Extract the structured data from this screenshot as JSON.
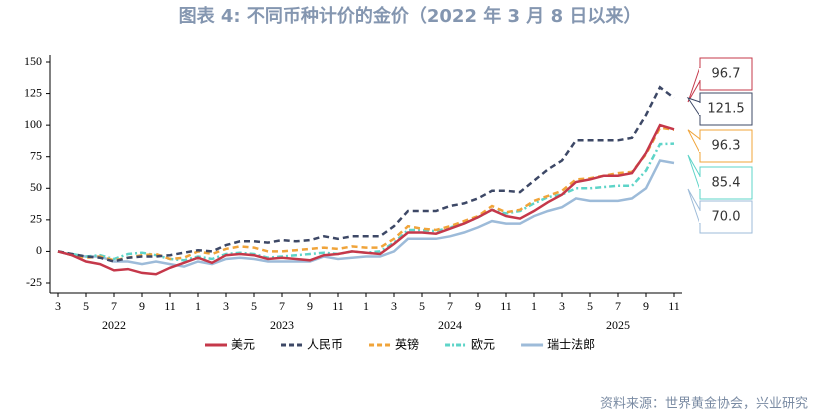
{
  "chart_data": {
    "type": "line",
    "title": "图表 4:  不同币种计价的金价（2022 年 3 月 8 日以来）",
    "source": "资料来源：世界黄金协会，兴业研究",
    "x": [
      "2022-03",
      "2022-04",
      "2022-05",
      "2022-06",
      "2022-07",
      "2022-08",
      "2022-09",
      "2022-10",
      "2022-11",
      "2022-12",
      "2023-01",
      "2023-02",
      "2023-03",
      "2023-04",
      "2023-05",
      "2023-06",
      "2023-07",
      "2023-08",
      "2023-09",
      "2023-10",
      "2023-11",
      "2023-12",
      "2024-01",
      "2024-02",
      "2024-03",
      "2024-04",
      "2024-05",
      "2024-06",
      "2024-07",
      "2024-08",
      "2024-09",
      "2024-10",
      "2024-11",
      "2024-12",
      "2025-01",
      "2025-02",
      "2025-03",
      "2025-04",
      "2025-05",
      "2025-06",
      "2025-07",
      "2025-08",
      "2025-09",
      "2025-10",
      "2025-11"
    ],
    "xticks": [
      {
        "value": "2022-03",
        "label": "3"
      },
      {
        "value": "2022-05",
        "label": "5"
      },
      {
        "value": "2022-07",
        "label": "7"
      },
      {
        "value": "2022-09",
        "label": "9"
      },
      {
        "value": "2022-11",
        "label": "11"
      },
      {
        "value": "2023-01",
        "label": "1"
      },
      {
        "value": "2023-03",
        "label": "3"
      },
      {
        "value": "2023-05",
        "label": "5"
      },
      {
        "value": "2023-07",
        "label": "7"
      },
      {
        "value": "2023-09",
        "label": "9"
      },
      {
        "value": "2023-11",
        "label": "11"
      },
      {
        "value": "2024-01",
        "label": "1"
      },
      {
        "value": "2024-03",
        "label": "3"
      },
      {
        "value": "2024-05",
        "label": "5"
      },
      {
        "value": "2024-07",
        "label": "7"
      },
      {
        "value": "2024-09",
        "label": "9"
      },
      {
        "value": "2024-11",
        "label": "11"
      },
      {
        "value": "2025-01",
        "label": "1"
      },
      {
        "value": "2025-03",
        "label": "3"
      },
      {
        "value": "2025-05",
        "label": "5"
      },
      {
        "value": "2025-07",
        "label": "7"
      },
      {
        "value": "2025-09",
        "label": "9"
      },
      {
        "value": "2025-11",
        "label": "11"
      }
    ],
    "x_groups": [
      {
        "value": "2022-07",
        "label": "2022"
      },
      {
        "value": "2023-07",
        "label": "2023"
      },
      {
        "value": "2024-07",
        "label": "2024"
      },
      {
        "value": "2025-07",
        "label": "2025"
      }
    ],
    "ylim": [
      -25,
      150
    ],
    "yticks": [
      -25,
      0,
      25,
      50,
      75,
      100,
      125,
      150
    ],
    "legend": "bottom",
    "series": [
      {
        "name": "美元",
        "color": "#c5384a",
        "dash": "solid",
        "values": [
          0,
          -3,
          -8,
          -10,
          -15,
          -14,
          -17,
          -18,
          -13,
          -9,
          -5,
          -9,
          -3,
          -2,
          -3,
          -6,
          -5,
          -6,
          -7,
          -3,
          -2,
          0,
          -1,
          -2,
          6,
          15,
          15,
          14,
          18,
          22,
          27,
          33,
          28,
          26,
          32,
          39,
          45,
          55,
          57,
          60,
          60,
          62,
          78,
          100,
          96.7
        ]
      },
      {
        "name": "人民币",
        "color": "#3d4866",
        "dash": "dashed",
        "values": [
          0,
          -2,
          -4,
          -5,
          -8,
          -5,
          -4,
          -4,
          -3,
          -1,
          1,
          0,
          5,
          8,
          8,
          7,
          9,
          8,
          9,
          12,
          10,
          12,
          12,
          12,
          20,
          32,
          32,
          32,
          36,
          38,
          42,
          48,
          48,
          47,
          56,
          65,
          72,
          88,
          88,
          88,
          88,
          90,
          108,
          130,
          121.5
        ]
      },
      {
        "name": "英镑",
        "color": "#f0a43a",
        "dash": "dashed",
        "values": [
          0,
          -3,
          -5,
          -4,
          -7,
          -5,
          -3,
          -2,
          -6,
          -5,
          0,
          -2,
          2,
          4,
          3,
          0,
          0,
          1,
          2,
          3,
          2,
          4,
          3,
          3,
          10,
          20,
          18,
          17,
          20,
          24,
          28,
          36,
          31,
          33,
          40,
          44,
          48,
          57,
          58,
          60,
          62,
          63,
          77,
          98,
          96.3
        ]
      },
      {
        "name": "欧元",
        "color": "#5ed4c8",
        "dash": "dashdot",
        "values": [
          0,
          -2,
          -4,
          -3,
          -6,
          -2,
          -1,
          -3,
          -6,
          -7,
          -4,
          -6,
          -2,
          -1,
          -2,
          -5,
          -4,
          -3,
          -2,
          -1,
          -2,
          0,
          -1,
          0,
          7,
          17,
          17,
          16,
          19,
          22,
          27,
          33,
          30,
          32,
          38,
          43,
          45,
          50,
          50,
          51,
          52,
          52,
          64,
          85,
          85.4
        ]
      },
      {
        "name": "瑞士法郎",
        "color": "#9dbbd9",
        "dash": "solid",
        "values": [
          0,
          -3,
          -4,
          -4,
          -8,
          -8,
          -10,
          -8,
          -10,
          -12,
          -8,
          -10,
          -6,
          -5,
          -6,
          -8,
          -8,
          -8,
          -8,
          -4,
          -6,
          -5,
          -4,
          -4,
          0,
          10,
          10,
          10,
          12,
          15,
          19,
          24,
          22,
          22,
          28,
          32,
          35,
          42,
          40,
          40,
          40,
          42,
          50,
          72,
          70
        ],
        "value_labels": [
          null,
          null,
          null,
          null,
          null,
          null,
          null,
          null,
          null,
          null,
          null,
          null,
          null,
          null,
          null,
          null,
          null,
          null,
          null,
          null,
          null,
          null,
          null,
          null,
          null,
          null,
          null,
          null,
          null,
          null,
          null,
          null,
          null,
          null,
          null,
          null,
          null,
          null,
          null,
          null,
          null,
          null,
          null,
          null,
          "70.0"
        ]
      }
    ]
  }
}
